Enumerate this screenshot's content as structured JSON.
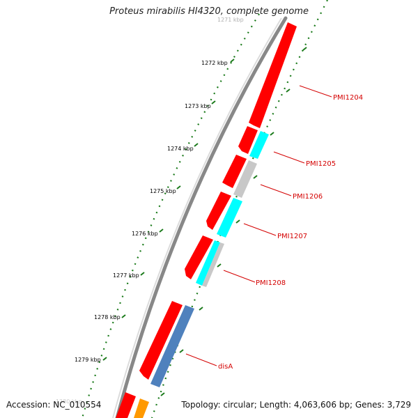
{
  "title": "Proteus mirabilis HI4320, complete genome",
  "footer": {
    "accession": "Accession: NC_010554",
    "summary": "Topology: circular; Length: 4,063,606 bp; Genes: 3,729"
  },
  "ruler": {
    "labels": [
      "1271 kbp",
      "1272 kbp",
      "1273 kbp",
      "1274 kbp",
      "1275 kbp",
      "1276 kbp",
      "1277 kbp",
      "1278 kbp",
      "1279 kbp",
      "1280 kbp"
    ],
    "faded_labels": [
      "1271 kbp",
      "1280 kbp"
    ]
  },
  "gene_labels": [
    "PMI1204",
    "PMI1205",
    "PMI1206",
    "PMI1207",
    "PMI1208",
    "disA"
  ],
  "colors": {
    "forward_cds": "#ff0000",
    "reverse_cds": "#00ffff",
    "pseudo": "#c8c8c8",
    "steel": "#4f81bd",
    "orange": "#ff9900",
    "ruler": "#1a7a1a",
    "backbone": "#888888",
    "label": "#d40000"
  }
}
